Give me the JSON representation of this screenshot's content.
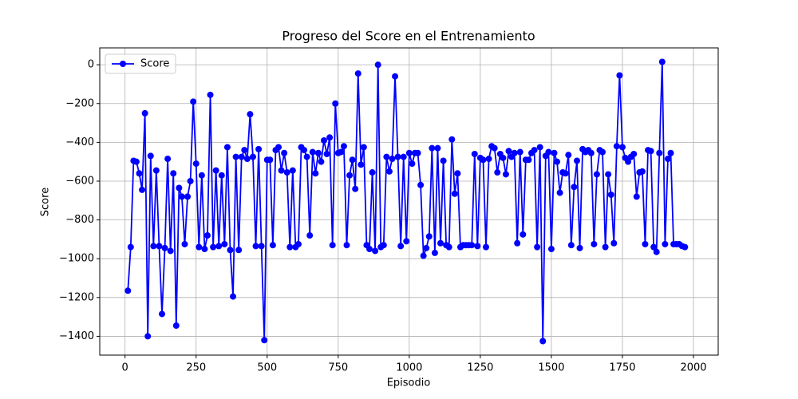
{
  "chart_data": {
    "type": "line",
    "title": "Progreso del Score en el Entrenamiento",
    "x_label": "Episodio",
    "y_label": "Score",
    "x": [
      10,
      20,
      30,
      40,
      50,
      60,
      70,
      80,
      90,
      100,
      110,
      120,
      130,
      140,
      150,
      160,
      170,
      180,
      190,
      200,
      210,
      220,
      230,
      240,
      250,
      260,
      270,
      280,
      290,
      300,
      310,
      320,
      330,
      340,
      350,
      360,
      370,
      380,
      390,
      400,
      410,
      420,
      430,
      440,
      450,
      460,
      470,
      480,
      490,
      500,
      510,
      520,
      530,
      540,
      550,
      560,
      570,
      580,
      590,
      600,
      610,
      620,
      630,
      640,
      650,
      660,
      670,
      680,
      690,
      700,
      710,
      720,
      730,
      740,
      750,
      760,
      770,
      780,
      790,
      800,
      810,
      820,
      830,
      840,
      850,
      860,
      870,
      880,
      890,
      900,
      910,
      920,
      930,
      940,
      950,
      960,
      970,
      980,
      990,
      1000,
      1010,
      1020,
      1030,
      1040,
      1050,
      1060,
      1070,
      1080,
      1090,
      1100,
      1110,
      1120,
      1130,
      1140,
      1150,
      1160,
      1170,
      1180,
      1190,
      1200,
      1210,
      1220,
      1230,
      1240,
      1250,
      1260,
      1270,
      1280,
      1290,
      1300,
      1310,
      1320,
      1330,
      1340,
      1350,
      1360,
      1370,
      1380,
      1390,
      1400,
      1410,
      1420,
      1430,
      1440,
      1450,
      1460,
      1470,
      1480,
      1490,
      1500,
      1510,
      1520,
      1530,
      1540,
      1550,
      1560,
      1570,
      1580,
      1590,
      1600,
      1610,
      1620,
      1630,
      1640,
      1650,
      1660,
      1670,
      1680,
      1690,
      1700,
      1710,
      1720,
      1730,
      1740,
      1750,
      1760,
      1770,
      1780,
      1790,
      1800,
      1810,
      1820,
      1830,
      1840,
      1850,
      1860,
      1870,
      1880,
      1890,
      1900,
      1910,
      1920,
      1930,
      1940,
      1950,
      1960,
      1970
    ],
    "series": [
      {
        "name": "Score",
        "color": "#0000ff",
        "values": [
          -1165,
          -940,
          -495,
          -500,
          -560,
          -645,
          -250,
          -1400,
          -470,
          -935,
          -545,
          -935,
          -1285,
          -945,
          -485,
          -960,
          -560,
          -1345,
          -635,
          -680,
          -925,
          -680,
          -600,
          -190,
          -510,
          -940,
          -570,
          -950,
          -880,
          -155,
          -940,
          -545,
          -935,
          -570,
          -925,
          -425,
          -955,
          -1195,
          -475,
          -955,
          -475,
          -440,
          -485,
          -255,
          -475,
          -935,
          -435,
          -935,
          -1420,
          -490,
          -490,
          -930,
          -440,
          -425,
          -545,
          -455,
          -555,
          -940,
          -545,
          -940,
          -925,
          -425,
          -440,
          -475,
          -880,
          -450,
          -560,
          -455,
          -500,
          -390,
          -460,
          -375,
          -930,
          -200,
          -455,
          -450,
          -420,
          -930,
          -570,
          -490,
          -640,
          -45,
          -515,
          -425,
          -930,
          -950,
          -555,
          -960,
          0,
          -940,
          -930,
          -475,
          -550,
          -485,
          -60,
          -475,
          -935,
          -475,
          -910,
          -455,
          -510,
          -455,
          -455,
          -620,
          -985,
          -945,
          -885,
          -430,
          -970,
          -430,
          -920,
          -495,
          -930,
          -940,
          -385,
          -665,
          -560,
          -940,
          -930,
          -930,
          -930,
          -930,
          -460,
          -935,
          -480,
          -490,
          -940,
          -485,
          -420,
          -430,
          -555,
          -460,
          -480,
          -565,
          -445,
          -475,
          -455,
          -920,
          -450,
          -875,
          -490,
          -490,
          -455,
          -440,
          -940,
          -425,
          -1425,
          -470,
          -450,
          -950,
          -455,
          -500,
          -660,
          -555,
          -560,
          -465,
          -930,
          -630,
          -495,
          -945,
          -435,
          -450,
          -440,
          -455,
          -925,
          -565,
          -440,
          -450,
          -940,
          -565,
          -670,
          -920,
          -420,
          -55,
          -425,
          -480,
          -500,
          -475,
          -460,
          -680,
          -555,
          -550,
          -925,
          -440,
          -445,
          -940,
          -965,
          -455,
          15,
          -925,
          -485,
          -455,
          -925,
          -925,
          -925,
          -935,
          -940
        ]
      }
    ],
    "xlim": [
      -89,
      2087
    ],
    "ylim": [
      -1497,
      87
    ],
    "xticks": [
      0,
      250,
      500,
      750,
      1000,
      1250,
      1500,
      1750,
      2000
    ],
    "yticks": [
      {
        "value": -1400,
        "label": "−1400"
      },
      {
        "value": -1200,
        "label": "−1200"
      },
      {
        "value": -1000,
        "label": "−1000"
      },
      {
        "value": -800,
        "label": "−800"
      },
      {
        "value": -600,
        "label": "−600"
      },
      {
        "value": -400,
        "label": "−400"
      },
      {
        "value": -200,
        "label": "−200"
      },
      0
    ],
    "grid": true,
    "legend": "upper left"
  }
}
